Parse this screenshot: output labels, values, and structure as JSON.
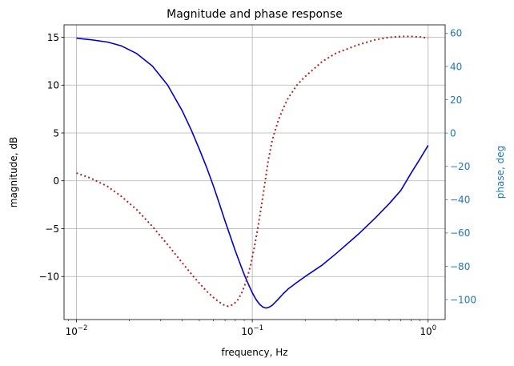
{
  "chart_data": {
    "type": "line",
    "title": "Magnitude and phase response",
    "xlabel": "frequency, Hz",
    "ylabel": "magnitude, dB",
    "y2label": "phase, deg",
    "xscale": "log",
    "xlim": [
      0.0085,
      1.25
    ],
    "ylim": [
      -14.5,
      16.3
    ],
    "y2lim": [
      -112,
      65
    ],
    "grid": true,
    "colors": {
      "magnitude": "#0000cc",
      "phase": "#b22222",
      "right_axis": "#1f77b4"
    },
    "xticks": [
      {
        "value": 0.01,
        "base": "10",
        "exp": "−2"
      },
      {
        "value": 0.1,
        "base": "10",
        "exp": "−1"
      },
      {
        "value": 1,
        "base": "10",
        "exp": "0"
      }
    ],
    "yticks": [
      {
        "value": 15,
        "label": "15"
      },
      {
        "value": 10,
        "label": "10"
      },
      {
        "value": 5,
        "label": "5"
      },
      {
        "value": 0,
        "label": "0"
      },
      {
        "value": -5,
        "label": "−5"
      },
      {
        "value": -10,
        "label": "−10"
      }
    ],
    "y2ticks": [
      {
        "value": 60,
        "label": "60"
      },
      {
        "value": 40,
        "label": "40"
      },
      {
        "value": 20,
        "label": "20"
      },
      {
        "value": 0,
        "label": "0"
      },
      {
        "value": -20,
        "label": "−20"
      },
      {
        "value": -40,
        "label": "−40"
      },
      {
        "value": -60,
        "label": "−60"
      },
      {
        "value": -80,
        "label": "−80"
      },
      {
        "value": -100,
        "label": "−100"
      }
    ],
    "series": [
      {
        "axis": "left",
        "style": "solid",
        "x": [
          0.01,
          0.012,
          0.015,
          0.018,
          0.022,
          0.027,
          0.033,
          0.04,
          0.045,
          0.05,
          0.055,
          0.06,
          0.065,
          0.07,
          0.075,
          0.08,
          0.085,
          0.09,
          0.095,
          0.1,
          0.105,
          0.11,
          0.115,
          0.12,
          0.125,
          0.13,
          0.135,
          0.14,
          0.15,
          0.16,
          0.18,
          0.2,
          0.25,
          0.3,
          0.4,
          0.5,
          0.6,
          0.7,
          0.8,
          0.9,
          1.0
        ],
        "y": [
          14.9,
          14.75,
          14.5,
          14.1,
          13.3,
          12.0,
          10.0,
          7.3,
          5.3,
          3.3,
          1.4,
          -0.5,
          -2.4,
          -4.2,
          -5.8,
          -7.3,
          -8.6,
          -9.8,
          -10.8,
          -11.7,
          -12.4,
          -12.9,
          -13.2,
          -13.3,
          -13.2,
          -13.0,
          -12.7,
          -12.4,
          -11.8,
          -11.3,
          -10.6,
          -10.0,
          -8.8,
          -7.6,
          -5.6,
          -3.9,
          -2.4,
          -1.0,
          0.8,
          2.3,
          3.7
        ]
      },
      {
        "axis": "right",
        "style": "dotted",
        "x": [
          0.01,
          0.012,
          0.015,
          0.018,
          0.022,
          0.027,
          0.033,
          0.04,
          0.047,
          0.055,
          0.062,
          0.068,
          0.073,
          0.078,
          0.083,
          0.088,
          0.093,
          0.098,
          0.103,
          0.108,
          0.113,
          0.118,
          0.123,
          0.13,
          0.14,
          0.15,
          0.16,
          0.18,
          0.2,
          0.25,
          0.3,
          0.4,
          0.5,
          0.6,
          0.7,
          0.8,
          0.9,
          1.0
        ],
        "y": [
          -24,
          -27,
          -32,
          -38,
          -46,
          -56,
          -67,
          -78,
          -87,
          -95,
          -100,
          -103,
          -104,
          -103,
          -100,
          -95,
          -88,
          -79,
          -68,
          -56,
          -43,
          -30,
          -17,
          -4,
          7,
          15,
          21,
          29,
          34,
          43,
          48,
          53,
          56,
          57.5,
          58,
          58,
          57.7,
          57
        ]
      }
    ]
  }
}
